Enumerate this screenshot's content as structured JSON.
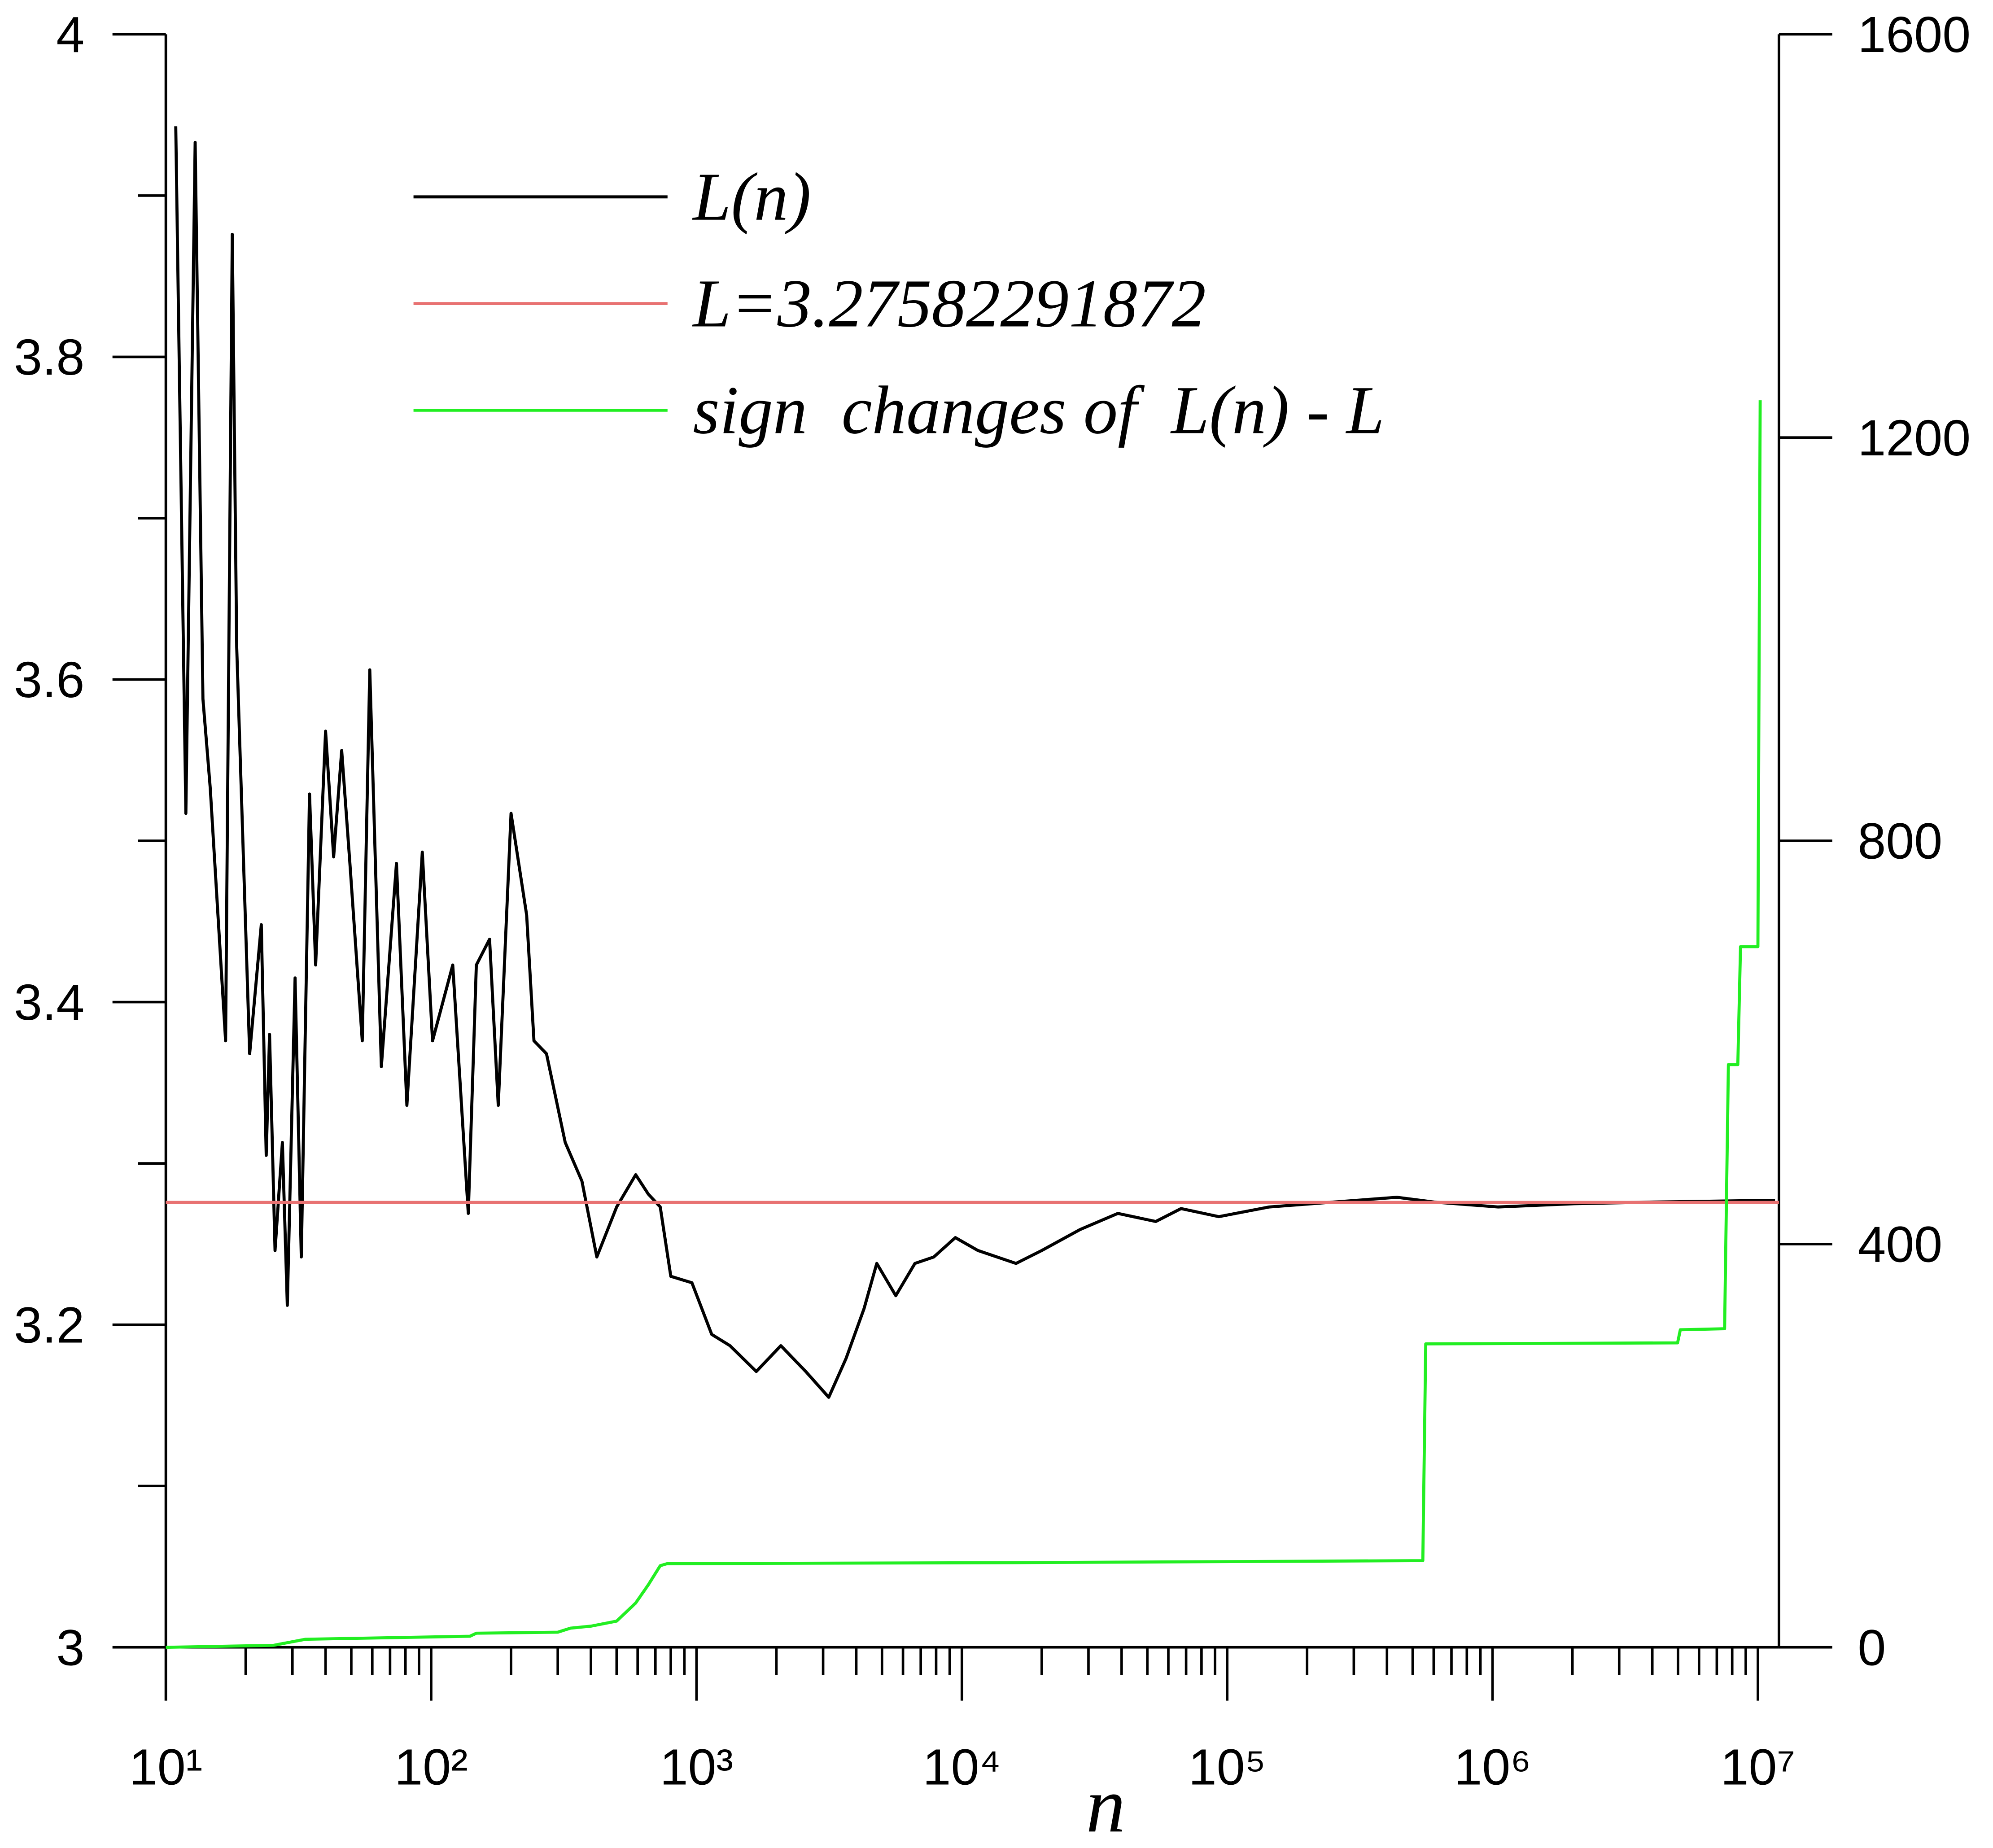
{
  "chart_data": {
    "type": "line",
    "x_label": "n",
    "xscale": "log",
    "xlim": [
      10,
      12000000
    ],
    "xticks": [
      {
        "value": 10,
        "label": "10¹"
      },
      {
        "value": 100,
        "label": "10²"
      },
      {
        "value": 1000,
        "label": "10³"
      },
      {
        "value": 10000,
        "label": "10⁴"
      },
      {
        "value": 100000,
        "label": "10⁵"
      },
      {
        "value": 1000000,
        "label": "10⁶"
      },
      {
        "value": 10000000,
        "label": "10⁷"
      }
    ],
    "xminor_ticks": [
      20,
      30,
      40,
      50,
      60,
      70,
      80,
      90,
      200,
      300,
      400,
      500,
      600,
      700,
      800,
      900,
      2000,
      3000,
      4000,
      5000,
      6000,
      7000,
      8000,
      9000,
      20000,
      30000,
      40000,
      50000,
      60000,
      70000,
      80000,
      90000,
      200000,
      300000,
      400000,
      500000,
      600000,
      700000,
      800000,
      900000,
      2000000,
      3000000,
      4000000,
      5000000,
      6000000,
      7000000,
      8000000,
      9000000
    ],
    "ylim": [
      3,
      4
    ],
    "yticks": [
      3,
      3.2,
      3.4,
      3.6,
      3.8,
      4
    ],
    "yminor_ticks": [
      3.1,
      3.3,
      3.5,
      3.7,
      3.9
    ],
    "y2lim": [
      0,
      1600
    ],
    "y2ticks": [
      0,
      400,
      800,
      1200,
      1600
    ],
    "legend": "upper center",
    "series": [
      {
        "name": "L(n)",
        "color": "#000000",
        "x": [
          10.9,
          11.9,
          12.9,
          13.8,
          14.7,
          16.8,
          17.8,
          18.5,
          20.7,
          22.9,
          23.9,
          24.6,
          25.8,
          27.5,
          28.7,
          30.7,
          32.4,
          34.8,
          36.7,
          40,
          42.9,
          46,
          49.4,
          55,
          58.7,
          64.9,
          74,
          81,
          92.6,
          101.2,
          120.6,
          138,
          148,
          166,
          179,
          200,
          229,
          244,
          272,
          320,
          370,
          421,
          500,
          590,
          658,
          730,
          800,
          961,
          1141,
          1337,
          1680,
          2079,
          2580,
          3150,
          3659,
          4280,
          4778,
          5636,
          6654,
          7840,
          9450,
          11500,
          16000,
          20000,
          27900,
          38700,
          53800,
          67000,
          93000,
          144000,
          250000,
          436000,
          604000,
          1050000,
          2030000,
          3910000,
          10000000,
          11600000
        ],
        "values": [
          3.943,
          3.517,
          3.933,
          3.588,
          3.533,
          3.376,
          3.876,
          3.62,
          3.368,
          3.448,
          3.305,
          3.38,
          3.246,
          3.313,
          3.212,
          3.415,
          3.242,
          3.529,
          3.423,
          3.568,
          3.49,
          3.556,
          3.486,
          3.376,
          3.606,
          3.36,
          3.486,
          3.336,
          3.493,
          3.376,
          3.423,
          3.269,
          3.423,
          3.439,
          3.336,
          3.517,
          3.454,
          3.376,
          3.368,
          3.313,
          3.289,
          3.242,
          3.273,
          3.293,
          3.281,
          3.273,
          3.23,
          3.226,
          3.194,
          3.187,
          3.171,
          3.187,
          3.171,
          3.155,
          3.179,
          3.21,
          3.238,
          3.218,
          3.238,
          3.242,
          3.254,
          3.246,
          3.238,
          3.246,
          3.259,
          3.269,
          3.264,
          3.272,
          3.267,
          3.273,
          3.276,
          3.279,
          3.276,
          3.273,
          3.275,
          3.276,
          3.277,
          3.277
        ]
      },
      {
        "name": "L=3.27582291872",
        "color": "#e87272",
        "x": [
          10,
          12000000
        ],
        "values": [
          3.27582291872,
          3.27582291872
        ]
      },
      {
        "name": "sign  changes of  L(n) - L",
        "color": "#22ee22",
        "axis": "y2",
        "x": [
          10,
          25.5,
          33.6,
          140,
          148,
          300,
          335,
          400,
          500,
          590,
          658,
          730,
          775,
          16000,
          546000,
          560000,
          4980000,
          5100000,
          7490000,
          7740000,
          8400000,
          8600000,
          10000000,
          10200000
        ],
        "values": [
          0,
          2,
          8,
          11,
          14,
          15,
          19,
          21,
          26,
          44,
          62,
          81,
          83,
          84,
          86,
          301,
          302,
          315,
          316,
          578,
          578,
          695,
          695,
          1237
        ]
      }
    ]
  }
}
